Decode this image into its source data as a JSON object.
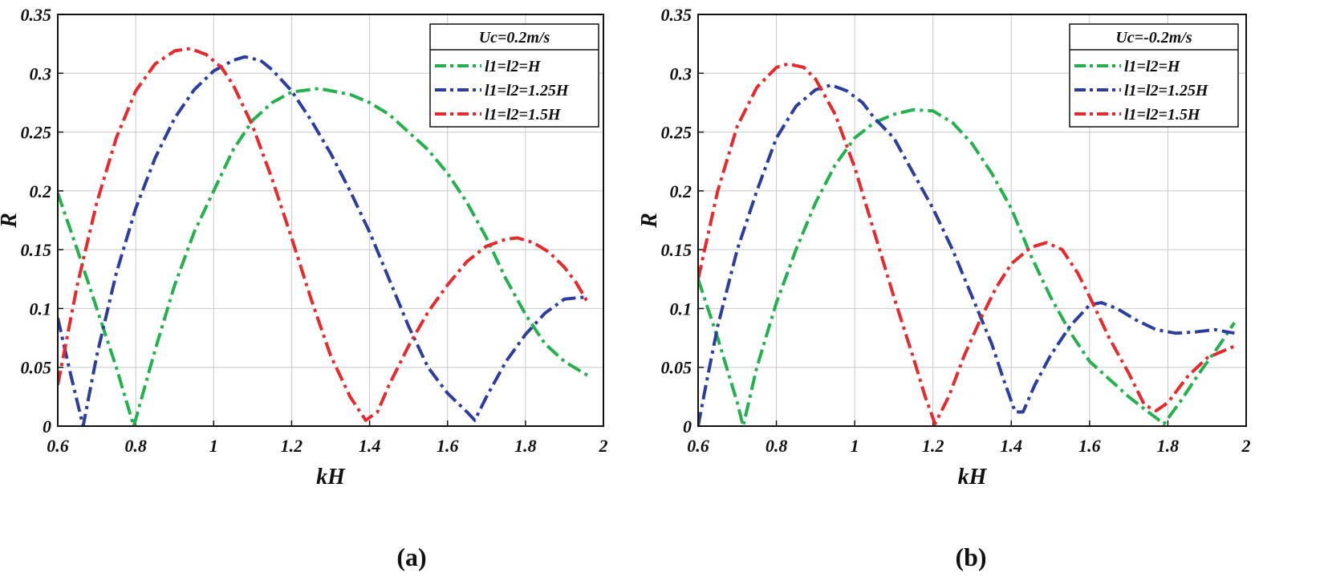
{
  "chart_data": [
    {
      "type": "line",
      "caption": "(a)",
      "xlabel": "kH",
      "ylabel": "R",
      "xlim": [
        0.6,
        2.0
      ],
      "ylim": [
        0,
        0.35
      ],
      "xticks": [
        "0.6",
        "0.8",
        "1",
        "1.2",
        "1.4",
        "1.6",
        "1.8",
        "2"
      ],
      "yticks": [
        "0",
        "0.05",
        "0.1",
        "0.15",
        "0.2",
        "0.25",
        "0.3",
        "0.35"
      ],
      "grid": true,
      "legend_position": "top-right",
      "legend_title": "Uc=0.2m/s",
      "series": [
        {
          "name": "l1=l2=H",
          "color": "#22b14c",
          "points": [
            [
              0.6,
              0.198
            ],
            [
              0.65,
              0.15
            ],
            [
              0.7,
              0.1
            ],
            [
              0.75,
              0.05
            ],
            [
              0.795,
              0.0
            ],
            [
              0.85,
              0.065
            ],
            [
              0.9,
              0.12
            ],
            [
              0.95,
              0.165
            ],
            [
              1.0,
              0.2
            ],
            [
              1.05,
              0.235
            ],
            [
              1.1,
              0.26
            ],
            [
              1.15,
              0.275
            ],
            [
              1.2,
              0.284
            ],
            [
              1.27,
              0.287
            ],
            [
              1.35,
              0.282
            ],
            [
              1.4,
              0.275
            ],
            [
              1.45,
              0.265
            ],
            [
              1.5,
              0.25
            ],
            [
              1.55,
              0.235
            ],
            [
              1.6,
              0.215
            ],
            [
              1.65,
              0.19
            ],
            [
              1.7,
              0.16
            ],
            [
              1.75,
              0.125
            ],
            [
              1.8,
              0.095
            ],
            [
              1.85,
              0.07
            ],
            [
              1.9,
              0.055
            ],
            [
              1.96,
              0.043
            ]
          ]
        },
        {
          "name": "l1=l2=1.25H",
          "color": "#2b3ea0",
          "points": [
            [
              0.6,
              0.092
            ],
            [
              0.63,
              0.048
            ],
            [
              0.665,
              0.0
            ],
            [
              0.7,
              0.06
            ],
            [
              0.75,
              0.13
            ],
            [
              0.8,
              0.185
            ],
            [
              0.85,
              0.228
            ],
            [
              0.9,
              0.262
            ],
            [
              0.95,
              0.286
            ],
            [
              1.0,
              0.302
            ],
            [
              1.05,
              0.311
            ],
            [
              1.08,
              0.314
            ],
            [
              1.12,
              0.311
            ],
            [
              1.15,
              0.303
            ],
            [
              1.2,
              0.285
            ],
            [
              1.25,
              0.26
            ],
            [
              1.3,
              0.232
            ],
            [
              1.35,
              0.2
            ],
            [
              1.4,
              0.165
            ],
            [
              1.45,
              0.125
            ],
            [
              1.5,
              0.085
            ],
            [
              1.55,
              0.05
            ],
            [
              1.6,
              0.028
            ],
            [
              1.65,
              0.012
            ],
            [
              1.67,
              0.005
            ],
            [
              1.7,
              0.025
            ],
            [
              1.75,
              0.055
            ],
            [
              1.8,
              0.078
            ],
            [
              1.85,
              0.096
            ],
            [
              1.9,
              0.108
            ],
            [
              1.96,
              0.11
            ]
          ]
        },
        {
          "name": "l1=l2=1.5H",
          "color": "#e8282b",
          "points": [
            [
              0.6,
              0.035
            ],
            [
              0.65,
              0.12
            ],
            [
              0.7,
              0.19
            ],
            [
              0.75,
              0.245
            ],
            [
              0.8,
              0.285
            ],
            [
              0.85,
              0.308
            ],
            [
              0.9,
              0.319
            ],
            [
              0.94,
              0.321
            ],
            [
              0.98,
              0.316
            ],
            [
              1.02,
              0.305
            ],
            [
              1.05,
              0.29
            ],
            [
              1.1,
              0.255
            ],
            [
              1.15,
              0.21
            ],
            [
              1.2,
              0.16
            ],
            [
              1.25,
              0.108
            ],
            [
              1.3,
              0.06
            ],
            [
              1.35,
              0.025
            ],
            [
              1.39,
              0.005
            ],
            [
              1.42,
              0.012
            ],
            [
              1.45,
              0.035
            ],
            [
              1.5,
              0.068
            ],
            [
              1.55,
              0.097
            ],
            [
              1.6,
              0.12
            ],
            [
              1.65,
              0.14
            ],
            [
              1.7,
              0.153
            ],
            [
              1.75,
              0.159
            ],
            [
              1.78,
              0.16
            ],
            [
              1.82,
              0.156
            ],
            [
              1.86,
              0.148
            ],
            [
              1.9,
              0.135
            ],
            [
              1.93,
              0.122
            ],
            [
              1.96,
              0.105
            ]
          ]
        }
      ]
    },
    {
      "type": "line",
      "caption": "(b)",
      "xlabel": "kH",
      "ylabel": "R",
      "xlim": [
        0.6,
        2.0
      ],
      "ylim": [
        0,
        0.35
      ],
      "xticks": [
        "0.6",
        "0.8",
        "1",
        "1.2",
        "1.4",
        "1.6",
        "1.8",
        "2"
      ],
      "yticks": [
        "0",
        "0.05",
        "0.1",
        "0.15",
        "0.2",
        "0.25",
        "0.3",
        "0.35"
      ],
      "grid": true,
      "legend_position": "top-right",
      "legend_title": "Uc=-0.2m/s",
      "series": [
        {
          "name": "l1=l2=H",
          "color": "#22b14c",
          "points": [
            [
              0.6,
              0.125
            ],
            [
              0.65,
              0.075
            ],
            [
              0.7,
              0.02
            ],
            [
              0.715,
              0.0
            ],
            [
              0.75,
              0.05
            ],
            [
              0.8,
              0.105
            ],
            [
              0.85,
              0.15
            ],
            [
              0.9,
              0.19
            ],
            [
              0.95,
              0.222
            ],
            [
              1.0,
              0.245
            ],
            [
              1.05,
              0.258
            ],
            [
              1.1,
              0.265
            ],
            [
              1.15,
              0.269
            ],
            [
              1.2,
              0.268
            ],
            [
              1.25,
              0.258
            ],
            [
              1.3,
              0.24
            ],
            [
              1.35,
              0.215
            ],
            [
              1.4,
              0.185
            ],
            [
              1.45,
              0.145
            ],
            [
              1.5,
              0.11
            ],
            [
              1.55,
              0.08
            ],
            [
              1.6,
              0.055
            ],
            [
              1.65,
              0.04
            ],
            [
              1.7,
              0.025
            ],
            [
              1.75,
              0.012
            ],
            [
              1.79,
              0.002
            ],
            [
              1.83,
              0.02
            ],
            [
              1.88,
              0.045
            ],
            [
              1.93,
              0.068
            ],
            [
              1.97,
              0.088
            ]
          ]
        },
        {
          "name": "l1=l2=1.25H",
          "color": "#2b3ea0",
          "points": [
            [
              0.6,
              0.0
            ],
            [
              0.62,
              0.035
            ],
            [
              0.65,
              0.085
            ],
            [
              0.7,
              0.15
            ],
            [
              0.75,
              0.2
            ],
            [
              0.8,
              0.245
            ],
            [
              0.85,
              0.272
            ],
            [
              0.9,
              0.286
            ],
            [
              0.94,
              0.29
            ],
            [
              0.98,
              0.285
            ],
            [
              1.02,
              0.275
            ],
            [
              1.05,
              0.262
            ],
            [
              1.1,
              0.245
            ],
            [
              1.15,
              0.215
            ],
            [
              1.2,
              0.185
            ],
            [
              1.25,
              0.15
            ],
            [
              1.3,
              0.11
            ],
            [
              1.35,
              0.07
            ],
            [
              1.38,
              0.04
            ],
            [
              1.41,
              0.012
            ],
            [
              1.43,
              0.012
            ],
            [
              1.46,
              0.035
            ],
            [
              1.5,
              0.06
            ],
            [
              1.55,
              0.085
            ],
            [
              1.6,
              0.103
            ],
            [
              1.63,
              0.105
            ],
            [
              1.67,
              0.1
            ],
            [
              1.72,
              0.09
            ],
            [
              1.77,
              0.082
            ],
            [
              1.82,
              0.079
            ],
            [
              1.87,
              0.08
            ],
            [
              1.92,
              0.082
            ],
            [
              1.97,
              0.079
            ]
          ]
        },
        {
          "name": "l1=l2=1.5H",
          "color": "#e8282b",
          "points": [
            [
              0.6,
              0.125
            ],
            [
              0.65,
              0.2
            ],
            [
              0.7,
              0.255
            ],
            [
              0.75,
              0.288
            ],
            [
              0.8,
              0.305
            ],
            [
              0.83,
              0.308
            ],
            [
              0.87,
              0.305
            ],
            [
              0.9,
              0.295
            ],
            [
              0.95,
              0.265
            ],
            [
              1.0,
              0.22
            ],
            [
              1.05,
              0.165
            ],
            [
              1.1,
              0.11
            ],
            [
              1.15,
              0.058
            ],
            [
              1.18,
              0.025
            ],
            [
              1.205,
              0.002
            ],
            [
              1.24,
              0.025
            ],
            [
              1.28,
              0.06
            ],
            [
              1.32,
              0.09
            ],
            [
              1.36,
              0.117
            ],
            [
              1.4,
              0.138
            ],
            [
              1.45,
              0.152
            ],
            [
              1.49,
              0.156
            ],
            [
              1.53,
              0.15
            ],
            [
              1.57,
              0.13
            ],
            [
              1.6,
              0.11
            ],
            [
              1.65,
              0.075
            ],
            [
              1.7,
              0.045
            ],
            [
              1.74,
              0.018
            ],
            [
              1.77,
              0.013
            ],
            [
              1.8,
              0.02
            ],
            [
              1.85,
              0.042
            ],
            [
              1.9,
              0.058
            ],
            [
              1.97,
              0.068
            ]
          ]
        }
      ]
    }
  ]
}
